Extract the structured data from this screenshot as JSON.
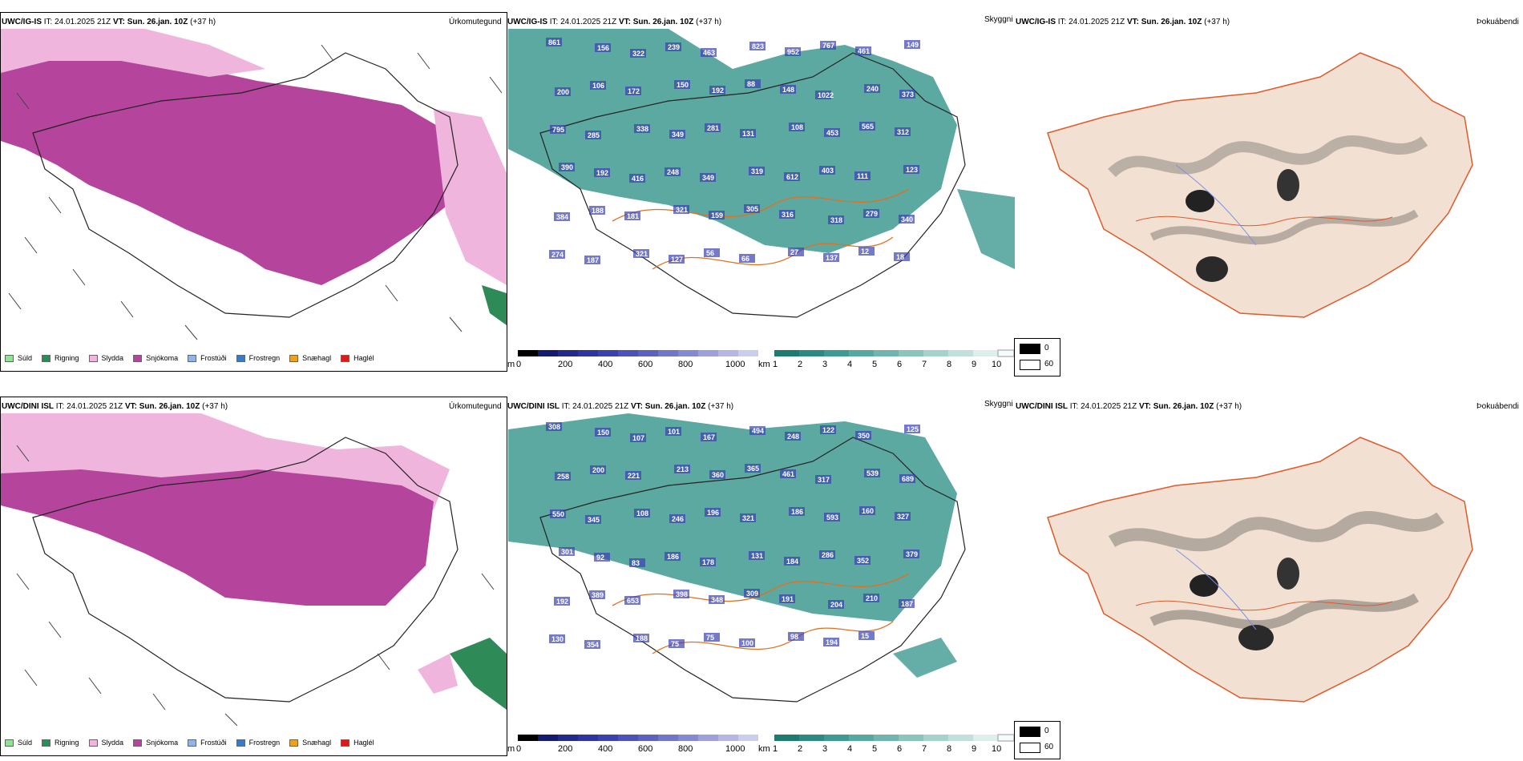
{
  "colors": {
    "snow": "#b5449c",
    "sleet": "#f0b5dd",
    "drizzle": "#8fe58f",
    "rain": "#2e8b57",
    "freezing_drizzle": "#8ab8ee",
    "freezing_rain": "#3a78c8",
    "graupel": "#f0a020",
    "hail": "#e01818",
    "vis_teal": "#3f9a92",
    "vis_dark": "#1e2a8a",
    "roads": "#e07020",
    "land": "#f2e0d2",
    "rivers": "#7a90e0"
  },
  "rows": [
    {
      "model": "UWC/IG-IS",
      "it": "IT: 24.01.2025 21Z",
      "vt_label": "VT:",
      "vt": "Sun. 26.jan. 10Z",
      "lead": "(+37 h)",
      "precip_title": "Úrkomutegund",
      "vis_title": "Skyggni",
      "dew_title": "Þokuábendi",
      "ceiling_labels": [
        "861",
        "156",
        "322",
        "239",
        "463",
        "823",
        "952",
        "767",
        "461",
        "149",
        "200",
        "106",
        "172",
        "150",
        "192",
        "88",
        "148",
        "1022",
        "240",
        "373",
        "795",
        "285",
        "338",
        "349",
        "281",
        "131",
        "108",
        "453",
        "565",
        "312",
        "390",
        "192",
        "416",
        "248",
        "349",
        "319",
        "612",
        "403",
        "111",
        "123",
        "384",
        "188",
        "181",
        "321",
        "159",
        "305",
        "316",
        "318",
        "279",
        "340",
        "274",
        "187",
        "321",
        "127",
        "56",
        "66",
        "27",
        "137",
        "12",
        "18"
      ]
    },
    {
      "model": "UWC/DINI ISL",
      "it": "IT: 24.01.2025 21Z",
      "vt_label": "VT:",
      "vt": "Sun. 26.jan. 10Z",
      "lead": "(+37 h)",
      "precip_title": "Úrkomutegund",
      "vis_title": "Skyggni",
      "dew_title": "Þokuábendi",
      "ceiling_labels": [
        "308",
        "150",
        "107",
        "101",
        "167",
        "494",
        "248",
        "122",
        "350",
        "125",
        "258",
        "200",
        "221",
        "213",
        "360",
        "365",
        "461",
        "317",
        "539",
        "689",
        "550",
        "345",
        "108",
        "246",
        "196",
        "321",
        "186",
        "593",
        "160",
        "327",
        "301",
        "92",
        "83",
        "186",
        "178",
        "131",
        "184",
        "286",
        "352",
        "379",
        "192",
        "389",
        "653",
        "398",
        "348",
        "309",
        "191",
        "204",
        "210",
        "187",
        "130",
        "354",
        "188",
        "75",
        "75",
        "100",
        "98",
        "194",
        "15"
      ]
    }
  ],
  "precip_legend": [
    "Súld",
    "Rigning",
    "Slydda",
    "Snjókoma",
    "Frostúði",
    "Frostregn",
    "Snæhagl",
    "Haglél"
  ],
  "ceiling_colorbar": {
    "unit": "m",
    "ticks": [
      "0",
      "200",
      "400",
      "600",
      "800",
      "1000"
    ]
  },
  "vis_colorbar": {
    "unit": "km",
    "ticks": [
      "1",
      "2",
      "3",
      "4",
      "5",
      "6",
      "7",
      "8",
      "9",
      "10"
    ]
  },
  "dew_legend": {
    "high": "0",
    "low": "60"
  }
}
